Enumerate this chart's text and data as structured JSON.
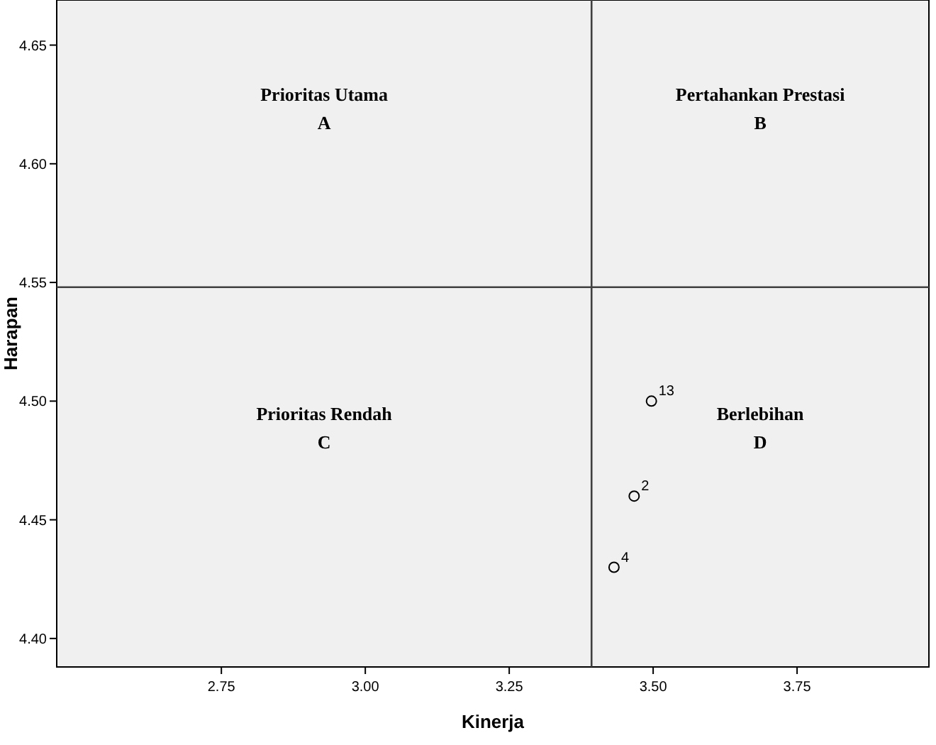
{
  "chart_data": {
    "type": "scatter",
    "xlabel": "Kinerja",
    "ylabel": "Harapan",
    "series": [
      {
        "color": "#000000",
        "x": [
          3.497,
          3.467,
          3.432
        ],
        "values": [
          4.5,
          4.46,
          4.43
        ]
      }
    ],
    "marker": "circle",
    "xlim": [
      2.464,
      3.979
    ],
    "xticks": [
      {
        "value": 2.75,
        "label": "2.75"
      },
      {
        "value": 3,
        "label": "3.00"
      },
      {
        "value": 3.25,
        "label": "3.25"
      },
      {
        "value": 3.5,
        "label": "3.50"
      },
      {
        "value": 3.75,
        "label": "3.75"
      }
    ],
    "ylim": [
      4.388,
      4.669
    ],
    "yticks": [
      {
        "value": 4.4,
        "label": "4.40"
      },
      {
        "value": 4.45,
        "label": "4.45"
      },
      {
        "value": 4.5,
        "label": "4.50"
      },
      {
        "value": 4.55,
        "label": "4.55"
      },
      {
        "value": 4.6,
        "label": "4.60"
      },
      {
        "value": 4.65,
        "label": "4.65"
      }
    ],
    "ref_lines": [
      {
        "axis": "x",
        "value": 3.393,
        "color": "#404040"
      },
      {
        "axis": "y",
        "value": 4.548,
        "color": "#404040"
      }
    ],
    "annotations": [
      "Prioritas Utama\nA",
      "Pertahankan Prestasi\nB",
      "Prioritas Rendah\nC",
      "Berlebihan\nD",
      {
        "text": "13",
        "x": 3.497,
        "y": 4.5
      },
      {
        "text": "2",
        "x": 3.467,
        "y": 4.46
      },
      {
        "text": "4",
        "x": 3.432,
        "y": 4.43
      }
    ],
    "grid": false
  }
}
